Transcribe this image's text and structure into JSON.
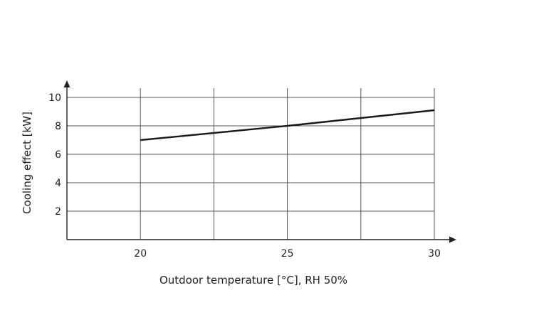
{
  "chart_data": {
    "type": "line",
    "xlabel": "Outdoor temperature [°C], RH 50%",
    "ylabel": "Cooling effect [kW]",
    "xlim": [
      17.5,
      30
    ],
    "ylim": [
      0,
      10
    ],
    "x_ticks": [
      20,
      25,
      30
    ],
    "x_tick_labels": [
      "20",
      "25",
      "30"
    ],
    "x_gridlines": [
      20,
      22.5,
      25,
      27.5,
      30
    ],
    "y_ticks": [
      2,
      4,
      6,
      8,
      10
    ],
    "y_tick_labels": [
      "2",
      "4",
      "6",
      "8",
      "10"
    ],
    "grid": true,
    "series": [
      {
        "x": [
          20,
          25,
          30
        ],
        "y": [
          7.0,
          8.0,
          9.1
        ]
      }
    ],
    "colors": {
      "line": "#1a1a1a",
      "grid": "#555555",
      "axis": "#222222"
    }
  }
}
